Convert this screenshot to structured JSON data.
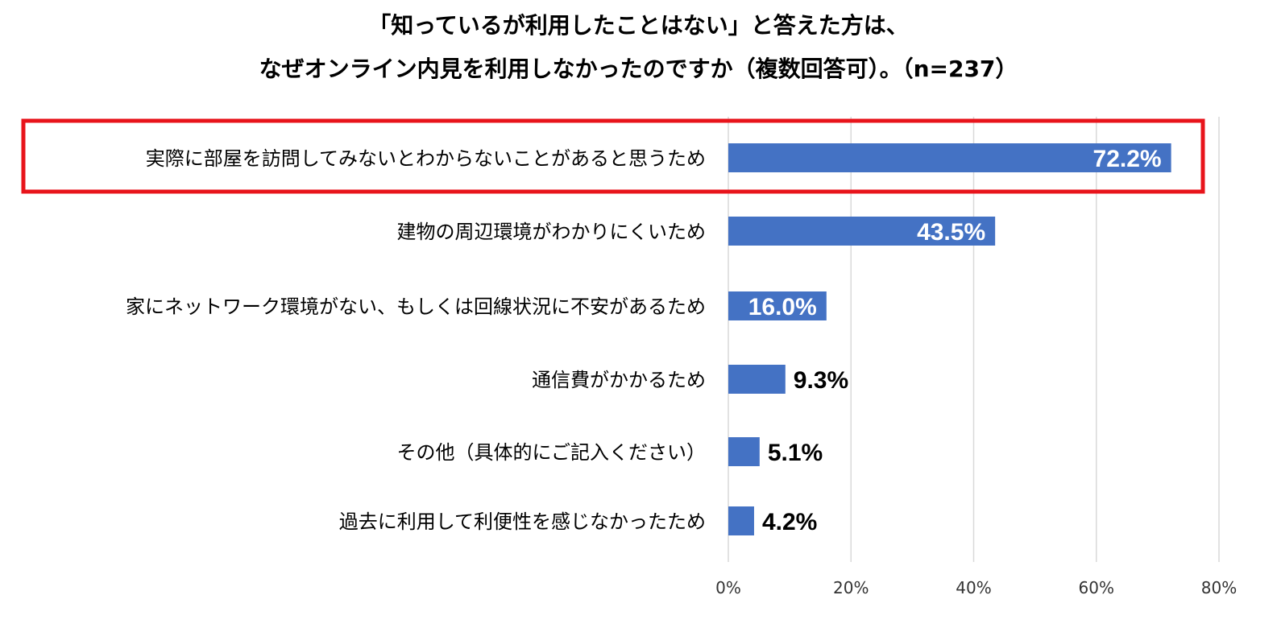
{
  "chart_data": {
    "type": "bar",
    "orientation": "horizontal",
    "title_line1": "「知っているが利用したことはない」と答えた方は、",
    "title_line2": "なぜオンライン内見を利用しなかったのですか（複数回答可）。（n=237）",
    "categories": [
      "実際に部屋を訪問してみないとわからないことがあると思うため",
      "建物の周辺環境がわかりにくいため",
      "家にネットワーク環境がない、もしくは回線状況に不安があるため",
      "通信費がかかるため",
      "その他（具体的にご記入ください）",
      "過去に利用して利便性を感じなかったため"
    ],
    "values": [
      72.2,
      43.5,
      16.0,
      9.3,
      5.1,
      4.2
    ],
    "labels": [
      "72.2%",
      "43.5%",
      "16.0%",
      "9.3%",
      "5.1%",
      "4.2%"
    ],
    "xlim": [
      0,
      80
    ],
    "xticks": [
      0,
      20,
      40,
      60,
      80
    ],
    "xtick_labels": [
      "0%",
      "20%",
      "40%",
      "60%",
      "80%"
    ],
    "grid": true,
    "highlighted_category_index": 0,
    "colors": {
      "bar": "#4472C4",
      "highlight_box": "#E8141B",
      "grid": "#D9D9D9",
      "label_inside": "#FFFFFF",
      "label_outside": "#000000"
    }
  }
}
